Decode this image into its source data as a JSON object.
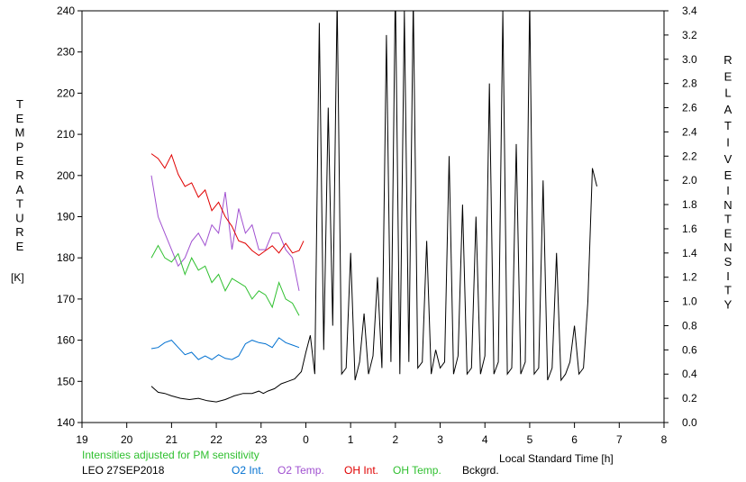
{
  "chart_data": {
    "type": "line",
    "left_axis": {
      "vertical_label": [
        "T",
        "E",
        "M",
        "P",
        "E",
        "R",
        "A",
        "T",
        "U",
        "R",
        "E"
      ],
      "unit": "[K]",
      "ylim": [
        140,
        240
      ],
      "ticks": [
        "140",
        "150",
        "160",
        "170",
        "180",
        "190",
        "200",
        "210",
        "220",
        "230",
        "240"
      ]
    },
    "right_axis": {
      "vertical_label_1": [
        "R",
        "E",
        "L",
        "A",
        "T",
        "I",
        "V",
        "E"
      ],
      "vertical_label_2": [
        "I",
        "N",
        "T",
        "E",
        "N",
        "S",
        "I",
        "T",
        "Y"
      ],
      "ylim": [
        0.0,
        3.4
      ],
      "ticks": [
        "0.0",
        "0.2",
        "0.4",
        "0.6",
        "0.8",
        "1.0",
        "1.2",
        "1.4",
        "1.6",
        "1.8",
        "2.0",
        "2.2",
        "2.4",
        "2.6",
        "2.8",
        "3.0",
        "3.2",
        "3.4"
      ]
    },
    "x_axis": {
      "label": "Local Standard Time [h]",
      "xlim": [
        19,
        32
      ],
      "tick_labels": [
        "19",
        "20",
        "21",
        "22",
        "23",
        "0",
        "1",
        "2",
        "3",
        "4",
        "5",
        "6",
        "7",
        "8"
      ]
    },
    "note": "Intensities adjusted for PM sensitivity",
    "station_date": "LEO 27SEP2018",
    "legend": [
      {
        "name": "O2 Int.",
        "color": "#0070d0"
      },
      {
        "name": "O2 Temp.",
        "color": "#a050d0"
      },
      {
        "name": "OH Int.",
        "color": "#e00000"
      },
      {
        "name": "OH Temp.",
        "color": "#30c030"
      },
      {
        "name": "Bckgrd.",
        "color": "#000000"
      }
    ],
    "series": [
      {
        "name": "O2 Temp.",
        "axis": "left",
        "color": "#a050d0",
        "x": [
          20.55,
          20.7,
          20.85,
          21.0,
          21.15,
          21.3,
          21.45,
          21.6,
          21.75,
          21.9,
          22.05,
          22.2,
          22.35,
          22.5,
          22.65,
          22.8,
          22.95,
          23.1,
          23.25,
          23.4,
          23.55,
          23.7,
          23.85
        ],
        "values": [
          200,
          190,
          186,
          182,
          178,
          180,
          184,
          186,
          183,
          188,
          186,
          196,
          182,
          192,
          186,
          188,
          182,
          182,
          186,
          186,
          182,
          180,
          172
        ]
      },
      {
        "name": "OH Temp.",
        "axis": "left",
        "color": "#30c030",
        "x": [
          20.55,
          20.7,
          20.85,
          21.0,
          21.15,
          21.3,
          21.45,
          21.6,
          21.75,
          21.9,
          22.05,
          22.2,
          22.35,
          22.5,
          22.65,
          22.8,
          22.95,
          23.1,
          23.25,
          23.4,
          23.55,
          23.7,
          23.85
        ],
        "values": [
          180,
          183,
          180,
          179,
          181,
          176,
          180,
          177,
          178,
          174,
          176,
          172,
          175,
          174,
          173,
          170,
          172,
          171,
          168,
          174,
          170,
          169,
          166
        ]
      },
      {
        "name": "OH Int.",
        "axis": "right",
        "color": "#e00000",
        "x": [
          20.55,
          20.7,
          20.85,
          21.0,
          21.15,
          21.3,
          21.45,
          21.6,
          21.75,
          21.9,
          22.05,
          22.2,
          22.35,
          22.5,
          22.65,
          22.8,
          22.95,
          23.1,
          23.25,
          23.4,
          23.55,
          23.7,
          23.85,
          23.95
        ],
        "values": [
          2.22,
          2.18,
          2.1,
          2.21,
          2.05,
          1.95,
          1.98,
          1.86,
          1.92,
          1.75,
          1.82,
          1.7,
          1.62,
          1.5,
          1.48,
          1.42,
          1.38,
          1.42,
          1.46,
          1.4,
          1.48,
          1.4,
          1.42,
          1.5
        ]
      },
      {
        "name": "O2 Int.",
        "axis": "right",
        "color": "#0070d0",
        "x": [
          20.55,
          20.7,
          20.85,
          21.0,
          21.15,
          21.3,
          21.45,
          21.6,
          21.75,
          21.9,
          22.05,
          22.2,
          22.35,
          22.5,
          22.65,
          22.8,
          22.95,
          23.1,
          23.25,
          23.4,
          23.55,
          23.7,
          23.85
        ],
        "values": [
          0.61,
          0.62,
          0.66,
          0.68,
          0.62,
          0.56,
          0.58,
          0.52,
          0.55,
          0.52,
          0.56,
          0.53,
          0.52,
          0.55,
          0.65,
          0.68,
          0.66,
          0.65,
          0.62,
          0.7,
          0.66,
          0.64,
          0.62
        ]
      },
      {
        "name": "Bckgrd.",
        "axis": "right",
        "color": "#000000",
        "x": [
          20.55,
          20.7,
          20.85,
          21.0,
          21.2,
          21.4,
          21.6,
          21.8,
          22.0,
          22.2,
          22.4,
          22.6,
          22.8,
          22.95,
          23.05,
          23.15,
          23.3,
          23.45,
          23.6,
          23.75,
          23.9,
          24.0,
          24.1,
          24.2,
          24.3,
          24.4,
          24.5,
          24.6,
          24.7,
          24.8,
          24.9,
          25.0,
          25.1,
          25.2,
          25.3,
          25.4,
          25.5,
          25.6,
          25.7,
          25.8,
          25.9,
          26.0,
          26.1,
          26.2,
          26.3,
          26.4,
          26.5,
          26.6,
          26.7,
          26.8,
          26.9,
          27.0,
          27.1,
          27.2,
          27.3,
          27.4,
          27.5,
          27.6,
          27.7,
          27.8,
          27.9,
          28.0,
          28.1,
          28.2,
          28.3,
          28.4,
          28.5,
          28.6,
          28.7,
          28.8,
          28.9,
          29.0,
          29.1,
          29.2,
          29.3,
          29.4,
          29.5,
          29.6,
          29.7,
          29.8,
          29.9,
          30.0,
          30.1,
          30.2,
          30.3,
          30.4,
          30.5
        ],
        "values": [
          0.3,
          0.25,
          0.24,
          0.22,
          0.2,
          0.19,
          0.2,
          0.18,
          0.17,
          0.19,
          0.22,
          0.24,
          0.24,
          0.26,
          0.24,
          0.26,
          0.28,
          0.32,
          0.34,
          0.36,
          0.42,
          0.58,
          0.72,
          0.4,
          3.3,
          0.6,
          2.6,
          0.8,
          3.5,
          0.4,
          0.45,
          1.4,
          0.35,
          0.5,
          0.9,
          0.4,
          0.55,
          1.2,
          0.45,
          3.2,
          0.5,
          3.6,
          0.4,
          3.4,
          0.5,
          3.5,
          0.45,
          0.5,
          1.5,
          0.4,
          0.6,
          0.45,
          0.5,
          2.2,
          0.4,
          0.55,
          1.8,
          0.4,
          0.45,
          1.7,
          0.4,
          0.55,
          2.8,
          0.4,
          0.5,
          3.4,
          0.4,
          0.45,
          2.3,
          0.4,
          0.5,
          3.5,
          0.4,
          0.45,
          2.0,
          0.35,
          0.45,
          1.4,
          0.35,
          0.4,
          0.5,
          0.8,
          0.4,
          0.45,
          1.0,
          2.1,
          1.95
        ]
      }
    ]
  }
}
